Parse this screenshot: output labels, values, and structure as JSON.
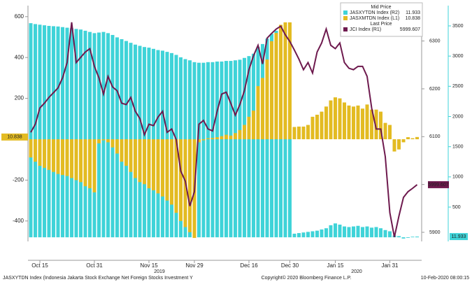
{
  "chart_data": {
    "type": "combo",
    "categories": [
      null,
      null,
      "Oct 15",
      null,
      null,
      null,
      null,
      null,
      null,
      null,
      null,
      null,
      null,
      null,
      "Oct 31",
      null,
      null,
      null,
      null,
      null,
      null,
      null,
      null,
      null,
      null,
      null,
      "Nov 15",
      null,
      null,
      null,
      null,
      null,
      null,
      null,
      null,
      null,
      "Nov 29",
      null,
      null,
      null,
      null,
      null,
      null,
      null,
      null,
      null,
      null,
      null,
      "Dec 16",
      null,
      null,
      null,
      null,
      null,
      null,
      null,
      null,
      "Dec 30",
      null,
      null,
      null,
      null,
      null,
      null,
      null,
      null,
      null,
      "Jan 15",
      null,
      null,
      null,
      null,
      null,
      null,
      null,
      null,
      null,
      null,
      null,
      "Jan 31",
      null,
      null,
      null,
      null,
      null,
      null
    ],
    "x_group_labels": [
      "2019",
      "2020"
    ],
    "ylim": [
      -500,
      654
    ],
    "yticks": [
      -400,
      -200,
      200,
      400,
      600
    ],
    "y2lim": [
      5881,
      6374
    ],
    "y2ticks": [
      5900,
      6000,
      6100,
      6200,
      6300
    ],
    "y3lim": [
      -68,
      3836
    ],
    "y3ticks": [
      500,
      1000,
      1500,
      2000,
      2500,
      3000,
      3500
    ],
    "legend_groups": [
      "Mid Price",
      "Last Price"
    ],
    "series": [
      {
        "name": "JASXYTDN Index (R2)",
        "type": "bar",
        "axis": "y3",
        "color": "#3fd3d8",
        "group": 0,
        "values": [
          3545,
          3530,
          3520,
          3510,
          3500,
          3495,
          3490,
          3480,
          3470,
          3460,
          3450,
          3440,
          3420,
          3400,
          3380,
          3390,
          3400,
          3380,
          3350,
          3310,
          3280,
          3250,
          3220,
          3190,
          3170,
          3150,
          3140,
          3120,
          3100,
          3090,
          3070,
          3050,
          3020,
          2980,
          2950,
          2930,
          2900,
          2890,
          2890,
          2900,
          2900,
          2910,
          2910,
          2920,
          2920,
          2930,
          2940,
          2970,
          3000,
          3040,
          3150,
          3200,
          3290,
          3370,
          3420,
          3460,
          3500,
          3520,
          60,
          70,
          80,
          90,
          100,
          110,
          130,
          150,
          200,
          230,
          210,
          180,
          170,
          180,
          190,
          170,
          180,
          160,
          170,
          150,
          120,
          100,
          30,
          20,
          -20,
          -10,
          10,
          11.933
        ]
      },
      {
        "name": "JASXMTDN Index (L1)",
        "type": "bar",
        "axis": "y",
        "color": "#e3bb22",
        "group": 0,
        "values": [
          -89,
          -110,
          -130,
          -140,
          -150,
          -160,
          -170,
          -175,
          -180,
          -190,
          -200,
          -210,
          -230,
          -240,
          -260,
          -20,
          -5,
          -15,
          -40,
          -70,
          -110,
          -130,
          -160,
          -190,
          -210,
          -220,
          -240,
          -250,
          -265,
          -280,
          -300,
          -320,
          -360,
          -400,
          -430,
          -455,
          -483,
          -15,
          -5,
          5,
          6,
          10,
          15,
          22,
          18,
          30,
          45,
          70,
          110,
          140,
          260,
          300,
          390,
          480,
          520,
          560,
          572,
          572,
          60,
          62,
          62,
          70,
          110,
          120,
          135,
          160,
          190,
          205,
          200,
          180,
          165,
          160,
          165,
          150,
          170,
          145,
          145,
          135,
          80,
          70,
          -60,
          -50,
          -15,
          10,
          5,
          10.838
        ]
      },
      {
        "name": "JCI Index  (R1)",
        "type": "line",
        "axis": "y2",
        "color": "#6e1a4e",
        "group": 1,
        "values": [
          6109,
          6126,
          6160,
          6170,
          6182,
          6192,
          6202,
          6223,
          6255,
          6339,
          6255,
          6266,
          6277,
          6284,
          6247,
          6223,
          6189,
          6226,
          6204,
          6196,
          6170,
          6167,
          6182,
          6153,
          6138,
          6104,
          6126,
          6123,
          6141,
          6153,
          6109,
          6116,
          6094,
          6028,
          6007,
          5955,
          5985,
          6126,
          6134,
          6116,
          6112,
          6153,
          6189,
          6193,
          6170,
          6145,
          6167,
          6196,
          6240,
          6269,
          6291,
          6252,
          6306,
          6316,
          6325,
          6331,
          6313,
          6299,
          6281,
          6262,
          6240,
          6255,
          6233,
          6277,
          6296,
          6325,
          6291,
          6284,
          6296,
          6255,
          6243,
          6240,
          6247,
          6247,
          6226,
          6160,
          6116,
          6116,
          6058,
          5941,
          5890,
          5934,
          5973,
          5985,
          5992,
          5999.607
        ]
      }
    ],
    "footer": [
      "JASXYTDN Index (Indonesia Jakarta Stock Exchange Net Foreign Stocks Investment Y",
      "Copyright© 2020 Bloomberg Finance L.P.",
      "10-Feb-2020 08:00:15"
    ]
  }
}
